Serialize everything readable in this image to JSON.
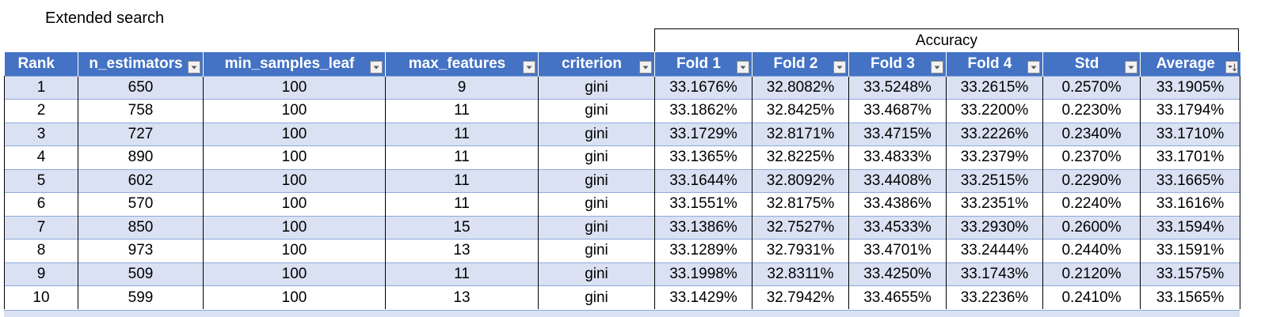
{
  "sheet": {
    "title": "Extended search",
    "group_header": "Accuracy"
  },
  "columns": [
    {
      "label": "Rank",
      "filter": false
    },
    {
      "label": "n_estimators",
      "filter": true
    },
    {
      "label": "min_samples_leaf",
      "filter": true
    },
    {
      "label": "max_features",
      "filter": true
    },
    {
      "label": "criterion",
      "filter": true
    },
    {
      "label": "Fold 1",
      "filter": true
    },
    {
      "label": "Fold 2",
      "filter": true
    },
    {
      "label": "Fold 3",
      "filter": true
    },
    {
      "label": "Fold 4",
      "filter": true
    },
    {
      "label": "Std",
      "filter": true
    },
    {
      "label": "Average",
      "filter": true,
      "sorted": "descending"
    }
  ],
  "rows": [
    [
      "1",
      "650",
      "100",
      "9",
      "gini",
      "33.1676%",
      "32.8082%",
      "33.5248%",
      "33.2615%",
      "0.2570%",
      "33.1905%"
    ],
    [
      "2",
      "758",
      "100",
      "11",
      "gini",
      "33.1862%",
      "32.8425%",
      "33.4687%",
      "33.2200%",
      "0.2230%",
      "33.1794%"
    ],
    [
      "3",
      "727",
      "100",
      "11",
      "gini",
      "33.1729%",
      "32.8171%",
      "33.4715%",
      "33.2226%",
      "0.2340%",
      "33.1710%"
    ],
    [
      "4",
      "890",
      "100",
      "11",
      "gini",
      "33.1365%",
      "32.8225%",
      "33.4833%",
      "33.2379%",
      "0.2370%",
      "33.1701%"
    ],
    [
      "5",
      "602",
      "100",
      "11",
      "gini",
      "33.1644%",
      "32.8092%",
      "33.4408%",
      "33.2515%",
      "0.2290%",
      "33.1665%"
    ],
    [
      "6",
      "570",
      "100",
      "11",
      "gini",
      "33.1551%",
      "32.8175%",
      "33.4386%",
      "33.2351%",
      "0.2240%",
      "33.1616%"
    ],
    [
      "7",
      "850",
      "100",
      "15",
      "gini",
      "33.1386%",
      "32.7527%",
      "33.4533%",
      "33.2930%",
      "0.2600%",
      "33.1594%"
    ],
    [
      "8",
      "973",
      "100",
      "13",
      "gini",
      "33.1289%",
      "32.7931%",
      "33.4701%",
      "33.2444%",
      "0.2440%",
      "33.1591%"
    ],
    [
      "9",
      "509",
      "100",
      "11",
      "gini",
      "33.1998%",
      "32.8311%",
      "33.4250%",
      "33.1743%",
      "0.2120%",
      "33.1575%"
    ],
    [
      "10",
      "599",
      "100",
      "13",
      "gini",
      "33.1429%",
      "32.7942%",
      "33.4655%",
      "33.2236%",
      "0.2410%",
      "33.1565%"
    ]
  ],
  "colors": {
    "header_bg": "#4472c4",
    "header_text": "#ffffff",
    "band_row": "#d9e1f2",
    "plain_row": "#ffffff",
    "row_divider": "#8ea9db"
  }
}
